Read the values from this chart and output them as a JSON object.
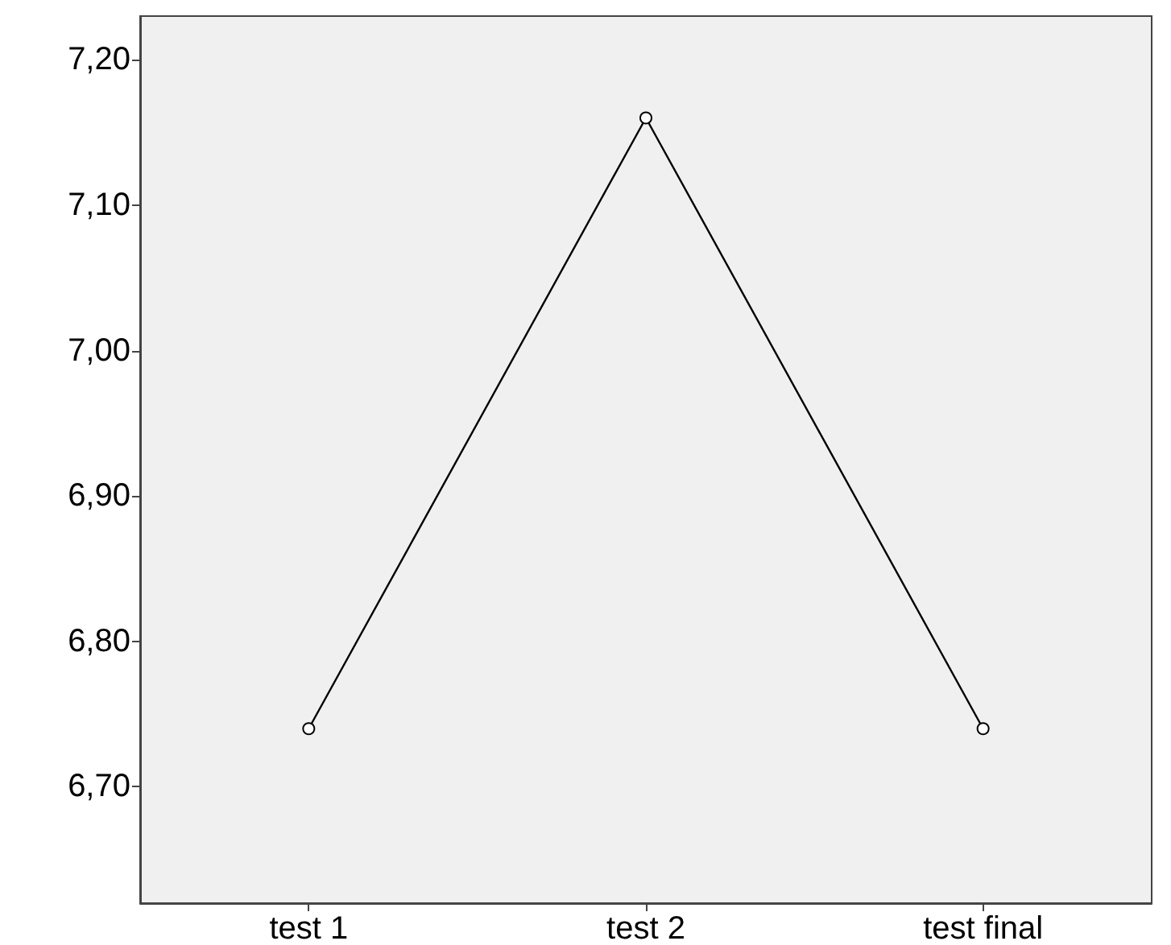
{
  "chart_data": {
    "type": "line",
    "categories": [
      "test 1",
      "test 2",
      "test final"
    ],
    "series": [
      {
        "color": "#000000",
        "values": [
          6.74,
          7.16,
          6.74
        ]
      }
    ],
    "ylim": [
      6.62,
      7.23
    ],
    "yticks": [
      {
        "value": 6.7,
        "label": "6,70"
      },
      {
        "value": 6.8,
        "label": "6,80"
      },
      {
        "value": 6.9,
        "label": "6,90"
      },
      {
        "value": 7.0,
        "label": "7,00"
      },
      {
        "value": 7.1,
        "label": "7,10"
      },
      {
        "value": 7.2,
        "label": "7,20"
      }
    ],
    "grid": false,
    "marker": "circle",
    "line_style": "solid"
  }
}
